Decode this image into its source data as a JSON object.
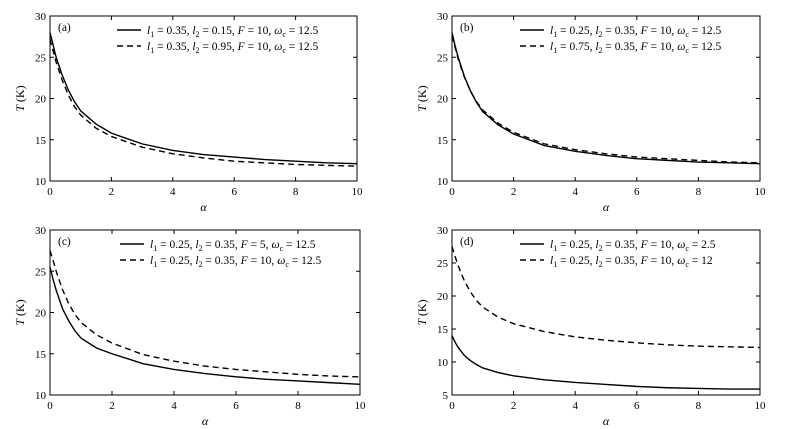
{
  "chart_data": [
    {
      "type": "line",
      "panel_label": "(a)",
      "xlabel": "α",
      "ylabel": "T (K)",
      "xlim": [
        0,
        10
      ],
      "ylim": [
        10,
        30
      ],
      "xticks": [
        0,
        2,
        4,
        6,
        8,
        10
      ],
      "yticks": [
        10,
        15,
        20,
        25,
        30
      ],
      "legend_position": "top-right",
      "series": [
        {
          "style": "solid",
          "legend": [
            [
              "l",
              "1",
              " = 0.35, "
            ],
            [
              "l",
              "2",
              " = 0.15, "
            ],
            [
              "F",
              "",
              " = 10, "
            ],
            [
              "ω",
              "c",
              " = 12.5"
            ]
          ],
          "x": [
            0,
            0.1,
            0.2,
            0.4,
            0.6,
            0.8,
            1.0,
            1.5,
            2,
            3,
            4,
            5,
            6,
            7,
            8,
            9,
            10
          ],
          "y": [
            28.0,
            26.5,
            25.0,
            22.8,
            21.0,
            19.6,
            18.5,
            16.9,
            15.8,
            14.5,
            13.7,
            13.2,
            12.9,
            12.6,
            12.4,
            12.2,
            12.1
          ]
        },
        {
          "style": "dashed",
          "legend": [
            [
              "l",
              "1",
              " = 0.35, "
            ],
            [
              "l",
              "2",
              " = 0.95, "
            ],
            [
              "F",
              "",
              " = 10, "
            ],
            [
              "ω",
              "c",
              " = 12.5"
            ]
          ],
          "x": [
            0,
            0.1,
            0.2,
            0.4,
            0.6,
            0.8,
            1.0,
            1.5,
            2,
            3,
            4,
            5,
            6,
            7,
            8,
            9,
            10
          ],
          "y": [
            27.2,
            25.8,
            24.4,
            22.2,
            20.4,
            19.0,
            18.0,
            16.4,
            15.4,
            14.1,
            13.3,
            12.8,
            12.4,
            12.2,
            12.0,
            11.9,
            11.8
          ]
        }
      ]
    },
    {
      "type": "line",
      "panel_label": "(b)",
      "xlabel": "α",
      "ylabel": "T (K)",
      "xlim": [
        0,
        10
      ],
      "ylim": [
        10,
        30
      ],
      "xticks": [
        0,
        2,
        4,
        6,
        8,
        10
      ],
      "yticks": [
        10,
        15,
        20,
        25,
        30
      ],
      "legend_position": "top-right",
      "series": [
        {
          "style": "solid",
          "legend": [
            [
              "l",
              "1",
              " = 0.25, "
            ],
            [
              "l",
              "2",
              " = 0.35, "
            ],
            [
              "F",
              "",
              " = 10, "
            ],
            [
              "ω",
              "c",
              " = 12.5"
            ]
          ],
          "x": [
            0,
            0.1,
            0.2,
            0.4,
            0.6,
            0.8,
            1.0,
            1.5,
            2,
            3,
            4,
            5,
            6,
            7,
            8,
            9,
            10
          ],
          "y": [
            28.0,
            26.4,
            25.0,
            22.7,
            20.9,
            19.5,
            18.4,
            16.8,
            15.7,
            14.3,
            13.6,
            13.1,
            12.7,
            12.5,
            12.3,
            12.2,
            12.1
          ]
        },
        {
          "style": "dashed",
          "legend": [
            [
              "l",
              "1",
              " = 0.75, "
            ],
            [
              "l",
              "2",
              " = 0.35, "
            ],
            [
              "F",
              "",
              " = 10, "
            ],
            [
              "ω",
              "c",
              " = 12.5"
            ]
          ],
          "x": [
            0,
            0.1,
            0.2,
            0.4,
            0.6,
            0.8,
            1.0,
            1.5,
            2,
            3,
            4,
            5,
            6,
            7,
            8,
            9,
            10
          ],
          "y": [
            27.6,
            26.2,
            24.8,
            22.6,
            20.9,
            19.6,
            18.6,
            17.0,
            15.9,
            14.5,
            13.8,
            13.3,
            12.9,
            12.7,
            12.5,
            12.3,
            12.2
          ]
        }
      ]
    },
    {
      "type": "line",
      "panel_label": "(c)",
      "xlabel": "α",
      "ylabel": "T (K)",
      "xlim": [
        0,
        10
      ],
      "ylim": [
        10,
        30
      ],
      "xticks": [
        0,
        2,
        4,
        6,
        8,
        10
      ],
      "yticks": [
        10,
        15,
        20,
        25,
        30
      ],
      "legend_position": "top-right",
      "series": [
        {
          "style": "solid",
          "legend": [
            [
              "l",
              "1",
              " = 0.25, "
            ],
            [
              "l",
              "2",
              " = 0.35, "
            ],
            [
              "F",
              "",
              " = 5, "
            ],
            [
              "ω",
              "c",
              " = 12.5"
            ]
          ],
          "x": [
            0,
            0.1,
            0.2,
            0.4,
            0.6,
            0.8,
            1.0,
            1.5,
            2,
            3,
            4,
            5,
            6,
            7,
            8,
            9,
            10
          ],
          "y": [
            25.5,
            24.0,
            22.7,
            20.5,
            19.0,
            17.8,
            16.9,
            15.7,
            15.0,
            13.8,
            13.1,
            12.6,
            12.2,
            11.9,
            11.7,
            11.5,
            11.3
          ]
        },
        {
          "style": "dashed",
          "legend": [
            [
              "l",
              "1",
              " = 0.25, "
            ],
            [
              "l",
              "2",
              " = 0.35, "
            ],
            [
              "F",
              "",
              " = 10, "
            ],
            [
              "ω",
              "c",
              " = 12.5"
            ]
          ],
          "x": [
            0,
            0.1,
            0.2,
            0.4,
            0.6,
            0.8,
            1.0,
            1.5,
            2,
            3,
            4,
            5,
            6,
            7,
            8,
            9,
            10
          ],
          "y": [
            27.5,
            26.3,
            25.0,
            22.8,
            21.1,
            19.8,
            18.8,
            17.3,
            16.3,
            14.9,
            14.1,
            13.5,
            13.1,
            12.8,
            12.5,
            12.3,
            12.2
          ]
        }
      ]
    },
    {
      "type": "line",
      "panel_label": "(d)",
      "xlabel": "α",
      "ylabel": "T (K)",
      "xlim": [
        0,
        10
      ],
      "ylim": [
        5,
        30
      ],
      "xticks": [
        0,
        2,
        4,
        6,
        8,
        10
      ],
      "yticks": [
        5,
        10,
        15,
        20,
        25,
        30
      ],
      "legend_position": "top-right",
      "series": [
        {
          "style": "solid",
          "legend": [
            [
              "l",
              "1",
              " = 0.25, "
            ],
            [
              "l",
              "2",
              " = 0.35, "
            ],
            [
              "F",
              "",
              " = 10, "
            ],
            [
              "ω",
              "c",
              " = 2.5"
            ]
          ],
          "x": [
            0,
            0.1,
            0.2,
            0.4,
            0.6,
            0.8,
            1.0,
            1.5,
            2,
            3,
            4,
            5,
            6,
            7,
            8,
            9,
            10
          ],
          "y": [
            14.0,
            13.0,
            12.2,
            11.0,
            10.2,
            9.6,
            9.1,
            8.4,
            7.9,
            7.3,
            6.9,
            6.6,
            6.3,
            6.1,
            6.0,
            5.9,
            5.9
          ]
        },
        {
          "style": "dashed",
          "legend": [
            [
              "l",
              "1",
              " = 0.25, "
            ],
            [
              "l",
              "2",
              " = 0.35, "
            ],
            [
              "F",
              "",
              " = 10, "
            ],
            [
              "ω",
              "c",
              " = 12"
            ]
          ],
          "x": [
            0,
            0.1,
            0.2,
            0.4,
            0.6,
            0.8,
            1.0,
            1.5,
            2,
            3,
            4,
            5,
            6,
            7,
            8,
            9,
            10
          ],
          "y": [
            27.5,
            26.0,
            24.6,
            22.3,
            20.6,
            19.3,
            18.3,
            16.8,
            15.8,
            14.6,
            13.8,
            13.3,
            12.9,
            12.6,
            12.4,
            12.3,
            12.2
          ]
        }
      ]
    }
  ]
}
